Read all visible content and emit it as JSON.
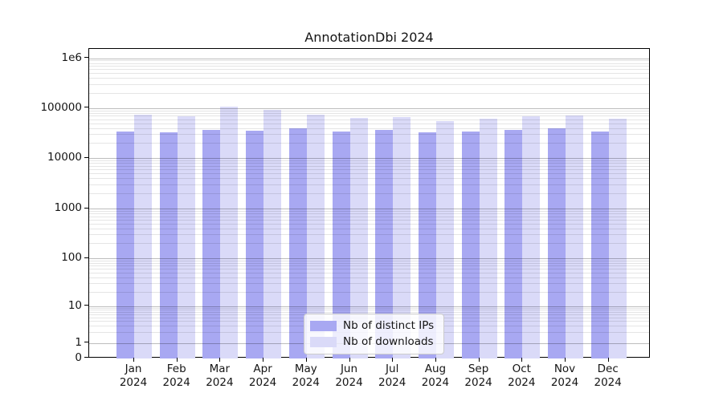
{
  "figure_title": "AnnotationDbi 2024",
  "chart_data": {
    "type": "bar",
    "title": "AnnotationDbi 2024",
    "categories": [
      "Jan 2024",
      "Feb 2024",
      "Mar 2024",
      "Apr 2024",
      "May 2024",
      "Jun 2024",
      "Jul 2024",
      "Aug 2024",
      "Sep 2024",
      "Oct 2024",
      "Nov 2024",
      "Dec 2024"
    ],
    "series": [
      {
        "name": "Nb of distinct IPs",
        "color": "#a8a8f2",
        "values": [
          34000,
          32800,
          36600,
          35000,
          40000,
          33600,
          36600,
          32700,
          34500,
          36600,
          38900,
          34000
        ]
      },
      {
        "name": "Nb of downloads",
        "color": "#dadaf8",
        "values": [
          73000,
          68600,
          107500,
          93000,
          74000,
          64500,
          67000,
          55700,
          60700,
          67800,
          71000,
          61300
        ]
      }
    ],
    "xlabel": "",
    "ylabel": "",
    "yscale": "symlog",
    "ylim": [
      0,
      1500000
    ],
    "y_ticks": [
      0,
      1,
      10,
      100,
      1000,
      10000,
      100000,
      1000000
    ],
    "y_tick_labels": [
      "0",
      "1",
      "10",
      "100",
      "1000",
      "10000",
      "100000",
      "1e6"
    ],
    "grid": true,
    "grid_minor": true,
    "legend_position": "lower center",
    "legend": [
      "Nb of distinct IPs",
      "Nb of downloads"
    ]
  }
}
